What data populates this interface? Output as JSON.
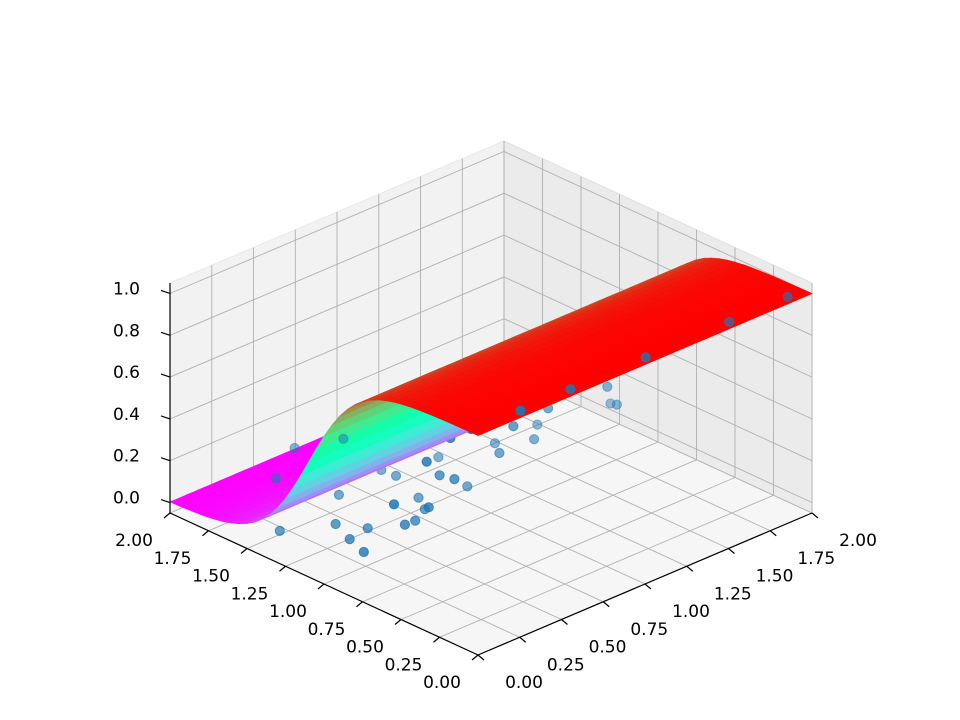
{
  "chart_data": {
    "type": "surface3d",
    "x_axis": {
      "ticks": [
        "0.00",
        "0.25",
        "0.50",
        "0.75",
        "1.00",
        "1.25",
        "1.50",
        "1.75",
        "2.00"
      ],
      "range": [
        0,
        2
      ]
    },
    "y_axis": {
      "ticks": [
        "0.00",
        "0.25",
        "0.50",
        "0.75",
        "1.00",
        "1.25",
        "1.50",
        "1.75",
        "2.00"
      ],
      "range": [
        0,
        2
      ]
    },
    "z_axis": {
      "ticks": [
        "0.0",
        "0.2",
        "0.4",
        "0.6",
        "0.8",
        "1.0"
      ],
      "range": [
        -0.05,
        1.05
      ]
    },
    "grid": true,
    "colormap": "rainbow",
    "surface": {
      "function": "logistic",
      "center": 1.1,
      "steepness": 6.5,
      "description": "z rises from 0 to 1 along the front-left axis, constant along the front-right axis"
    },
    "scatter": {
      "color": "#1f77b4",
      "points": [
        [
          0.1,
          1.9,
          0.0
        ],
        [
          0.25,
          1.75,
          0.01
        ],
        [
          0.35,
          1.6,
          0.02
        ],
        [
          0.15,
          1.45,
          0.0
        ],
        [
          0.45,
          1.8,
          0.03
        ],
        [
          0.55,
          1.5,
          0.02
        ],
        [
          0.3,
          1.25,
          0.05
        ],
        [
          0.6,
          1.7,
          0.01
        ],
        [
          0.7,
          1.95,
          0.04
        ],
        [
          0.2,
          1.05,
          0.08
        ],
        [
          0.8,
          1.4,
          0.06
        ],
        [
          0.4,
          1.15,
          0.03
        ],
        [
          0.9,
          1.85,
          0.05
        ],
        [
          0.5,
          0.95,
          0.1
        ],
        [
          0.65,
          1.05,
          0.07
        ],
        [
          0.1,
          0.85,
          0.12
        ],
        [
          0.3,
          0.8,
          0.2
        ],
        [
          0.75,
          1.2,
          0.04
        ],
        [
          0.85,
          1.55,
          0.02
        ],
        [
          0.95,
          1.1,
          0.06
        ],
        [
          0.35,
          0.7,
          0.3
        ],
        [
          0.05,
          0.6,
          0.45
        ],
        [
          0.55,
          0.75,
          0.35
        ],
        [
          0.15,
          0.2,
          0.95
        ],
        [
          0.4,
          0.3,
          0.9
        ],
        [
          0.25,
          0.45,
          0.75
        ],
        [
          0.65,
          0.5,
          0.7
        ],
        [
          0.05,
          0.1,
          0.98
        ],
        [
          0.3,
          0.05,
          1.0
        ],
        [
          0.5,
          0.15,
          0.97
        ],
        [
          0.7,
          0.25,
          0.93
        ],
        [
          0.9,
          0.35,
          0.88
        ],
        [
          1.1,
          0.2,
          0.96
        ],
        [
          1.3,
          0.1,
          0.99
        ],
        [
          1.5,
          0.3,
          0.92
        ],
        [
          1.7,
          0.15,
          0.97
        ],
        [
          1.9,
          0.05,
          1.0
        ],
        [
          1.2,
          0.45,
          0.8
        ],
        [
          1.45,
          0.55,
          0.74
        ],
        [
          1.8,
          0.4,
          0.86
        ],
        [
          1.0,
          0.55,
          0.68
        ],
        [
          0.85,
          0.65,
          0.6
        ],
        [
          1.6,
          0.7,
          0.62
        ],
        [
          1.95,
          0.3,
          0.94
        ],
        [
          1.35,
          0.35,
          0.9
        ],
        [
          1.05,
          0.05,
          1.0
        ],
        [
          0.75,
          0.1,
          0.99
        ],
        [
          1.55,
          0.05,
          1.0
        ],
        [
          1.25,
          0.6,
          0.72
        ],
        [
          1.75,
          0.55,
          0.76
        ],
        [
          0.95,
          0.8,
          0.45
        ],
        [
          0.6,
          0.9,
          0.3
        ],
        [
          1.15,
          0.75,
          0.55
        ],
        [
          1.4,
          0.85,
          0.48
        ],
        [
          1.65,
          0.95,
          0.35
        ],
        [
          1.85,
          0.8,
          0.52
        ],
        [
          1.05,
          1.0,
          0.22
        ],
        [
          1.3,
          1.3,
          0.08
        ],
        [
          1.55,
          1.55,
          0.02
        ],
        [
          1.9,
          1.2,
          0.1
        ],
        [
          1.7,
          1.75,
          0.01
        ],
        [
          1.2,
          1.85,
          0.0
        ],
        [
          1.45,
          1.95,
          0.0
        ],
        [
          1.95,
          1.6,
          0.02
        ],
        [
          1.6,
          1.35,
          0.05
        ],
        [
          1.1,
          1.45,
          0.03
        ],
        [
          1.35,
          1.1,
          0.15
        ],
        [
          1.8,
          1.05,
          0.18
        ],
        [
          0.2,
          0.55,
          0.62
        ],
        [
          0.45,
          0.4,
          0.82
        ],
        [
          0.85,
          0.15,
          0.98
        ],
        [
          1.0,
          0.3,
          0.94
        ],
        [
          0.6,
          0.05,
          1.0
        ],
        [
          0.1,
          0.35,
          0.88
        ],
        [
          1.25,
          0.9,
          0.4
        ]
      ]
    }
  }
}
